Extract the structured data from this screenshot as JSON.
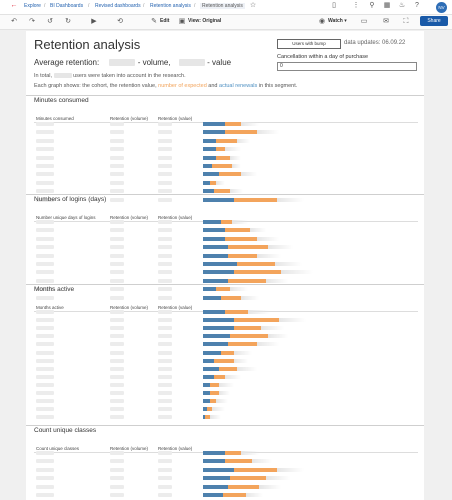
{
  "breadcrumb": [
    "Explore",
    "BI Dashboards",
    "Revised dashboards",
    "Retention analysis",
    "Retention analysis"
  ],
  "toolbar": {
    "edit": "Edit",
    "view": "View: Original",
    "watch": "Watch",
    "share": "Share"
  },
  "user": {
    "initials": "NV"
  },
  "dashboard": {
    "title": "Retention analysis",
    "bump_button": "Users with bump",
    "updates": "data updates: 06.09.22",
    "avg_label": "Average retention:",
    "avg_volume": "- volume,",
    "avg_value": "- value",
    "cancel_label": "Cancellation within a day of purchase",
    "cancel_value": "0",
    "info1_a": "In total,",
    "info1_b": "users were taken into account in the research.",
    "info2_a": "Each graph shows: the cohort, the retention value,",
    "info2_expected": "number of expected",
    "info2_and": "and",
    "info2_renewals": "actual renewals",
    "info2_end": "in this segment."
  },
  "sections": [
    {
      "title": "Minutes consumed",
      "col1": "Minutes consumed",
      "col2": "Retention (volume)",
      "col3": "Retention (value)",
      "bars": [
        [
          0.1,
          0.17,
          0.25
        ],
        [
          0.1,
          0.24,
          0.34
        ],
        [
          0.06,
          0.15,
          0.21
        ],
        [
          0.06,
          0.1,
          0.17
        ],
        [
          0.06,
          0.12,
          0.17
        ],
        [
          0.04,
          0.13,
          0.17
        ],
        [
          0.07,
          0.17,
          0.24
        ],
        [
          0.03,
          0.06,
          0.1
        ],
        [
          0.05,
          0.12,
          0.18
        ],
        [
          0.14,
          0.33,
          0.45
        ]
      ]
    },
    {
      "title": "Numbers of logins (days)",
      "col1": "Number unique days of logins",
      "col2": "Retention (volume)",
      "col3": "Retention (value)",
      "bars": [
        [
          0.08,
          0.13,
          0.2
        ],
        [
          0.1,
          0.21,
          0.28
        ],
        [
          0.1,
          0.24,
          0.34
        ],
        [
          0.11,
          0.29,
          0.4
        ],
        [
          0.11,
          0.24,
          0.35
        ],
        [
          0.15,
          0.32,
          0.44
        ],
        [
          0.14,
          0.35,
          0.49
        ],
        [
          0.11,
          0.28,
          0.38
        ],
        [
          0.06,
          0.12,
          0.2
        ],
        [
          0.08,
          0.17,
          0.25
        ]
      ]
    },
    {
      "title": "Months active",
      "col1": "Months active",
      "col2": "Retention (volume)",
      "col3": "Retention (value)",
      "bars": [
        [
          0.1,
          0.2,
          0.3
        ],
        [
          0.14,
          0.34,
          0.46
        ],
        [
          0.14,
          0.26,
          0.36
        ],
        [
          0.12,
          0.29,
          0.38
        ],
        [
          0.11,
          0.24,
          0.34
        ],
        [
          0.08,
          0.14,
          0.22
        ],
        [
          0.05,
          0.14,
          0.2
        ],
        [
          0.07,
          0.15,
          0.24
        ],
        [
          0.05,
          0.1,
          0.17
        ],
        [
          0.03,
          0.07,
          0.14
        ],
        [
          0.03,
          0.07,
          0.12
        ],
        [
          0.03,
          0.06,
          0.11
        ],
        [
          0.02,
          0.04,
          0.1
        ],
        [
          0.01,
          0.03,
          0.08
        ]
      ]
    },
    {
      "title": "Count unique classes",
      "col1": "Count unique classes",
      "col2": "Retention (volume)",
      "col3": "Retention (value)",
      "bars": [
        [
          0.1,
          0.17,
          0.25
        ],
        [
          0.1,
          0.22,
          0.31
        ],
        [
          0.14,
          0.33,
          0.45
        ],
        [
          0.12,
          0.28,
          0.39
        ],
        [
          0.11,
          0.25,
          0.35
        ],
        [
          0.09,
          0.19,
          0.27
        ]
      ]
    }
  ]
}
